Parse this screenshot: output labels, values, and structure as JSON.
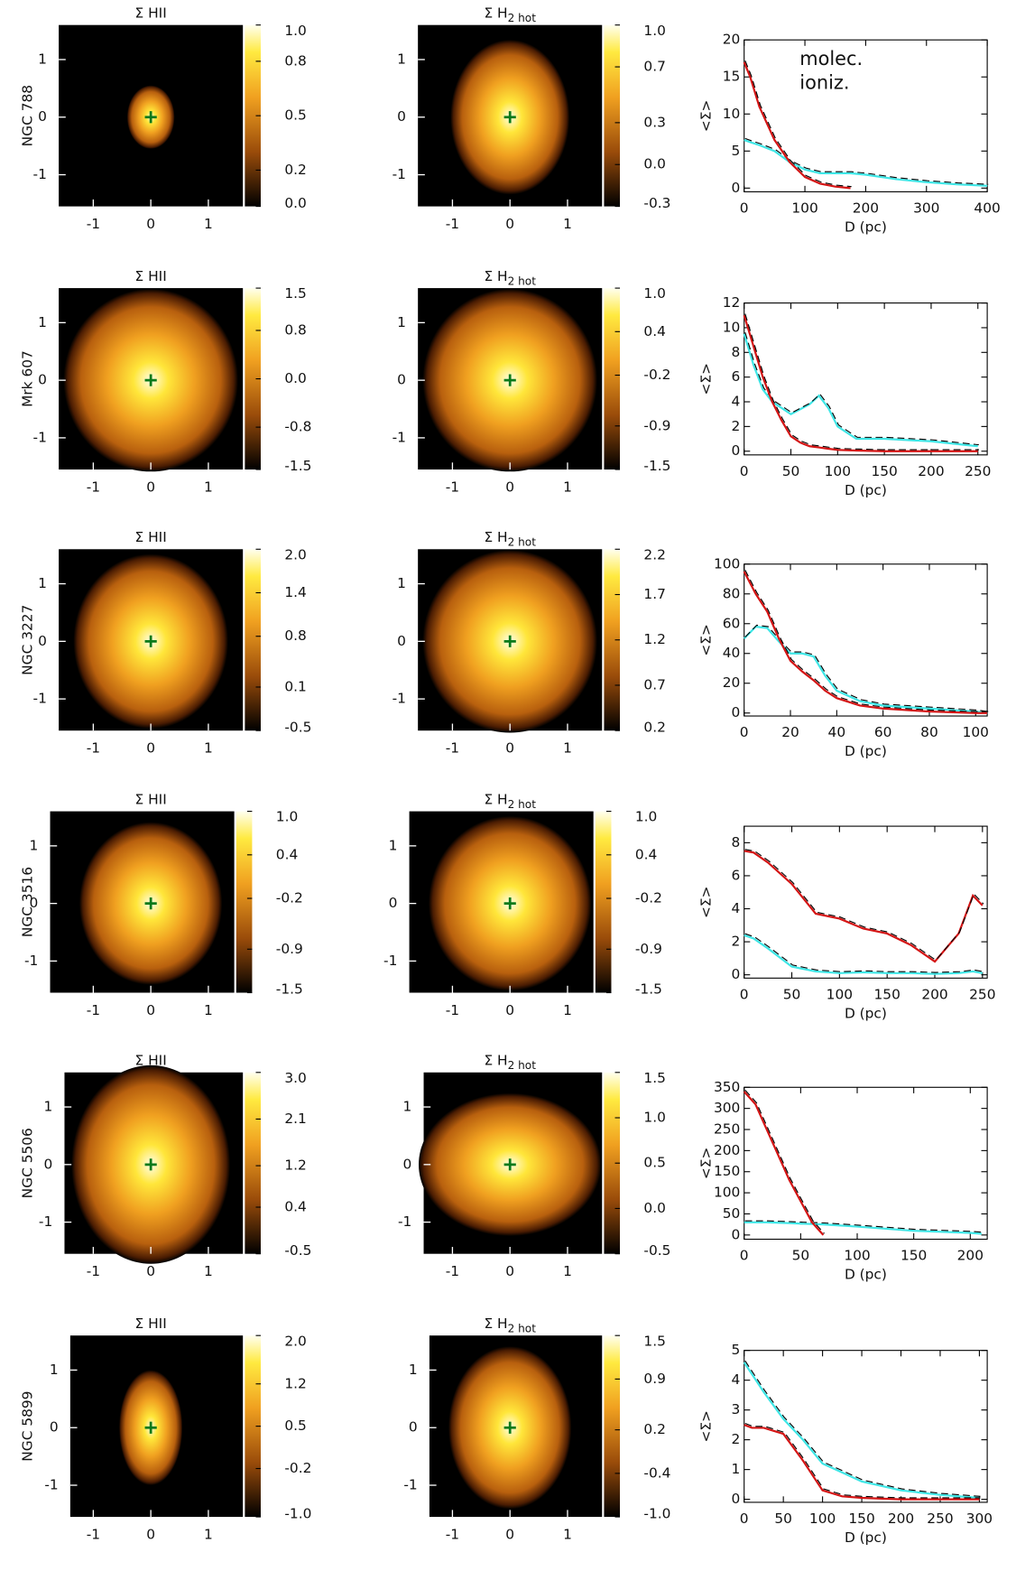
{
  "chart_data": [
    {
      "type": "heatmap",
      "title": "Σ HII",
      "ylabel": "NGC 788",
      "xlim": [
        -1.6,
        1.6
      ],
      "ylim": [
        -1.55,
        1.6
      ],
      "xticks": [
        -1,
        0,
        1
      ],
      "yticks": [
        -1,
        0,
        1
      ],
      "clim": [
        0,
        1
      ],
      "cticks": [
        {
          "value": 1,
          "label": "1.0"
        },
        0.8,
        0.5,
        0.2,
        {
          "value": 0,
          "label": "0.0"
        }
      ]
    },
    {
      "type": "heatmap",
      "title": "Σ H",
      "subscript": "2 hot",
      "xlim": [
        -1.6,
        1.6
      ],
      "ylim": [
        -1.55,
        1.6
      ],
      "xticks": [
        -1,
        0,
        1
      ],
      "yticks": [
        -1,
        0,
        1
      ],
      "clim": [
        -0.3,
        1
      ],
      "cticks": [
        {
          "value": 1,
          "label": "1.0"
        },
        0.7,
        0.3,
        {
          "value": 0,
          "label": "0.0"
        },
        -0.3
      ]
    },
    {
      "type": "line",
      "xlabel": "D (pc)",
      "ylabel": "<Σ>",
      "legend": true,
      "x": [
        0,
        10,
        25,
        50,
        75,
        100,
        125,
        150,
        175,
        200,
        250,
        300,
        350,
        400
      ],
      "xlim": [
        0,
        400
      ],
      "xticks": [
        0,
        100,
        200,
        300,
        400
      ],
      "ylim": [
        -0.5,
        20
      ],
      "yticks": [
        0,
        5,
        10,
        15,
        20
      ],
      "series": [
        {
          "name": "molec.",
          "color": "#3ee6e6",
          "values": [
            6.5,
            6.2,
            5.8,
            5,
            3.5,
            2.5,
            2,
            2,
            2,
            1.8,
            1.2,
            0.8,
            0.5,
            0.3
          ]
        },
        {
          "name": "ioniz.",
          "color": "#d41414",
          "values": [
            17,
            15,
            11,
            6.5,
            3.5,
            1.5,
            0.6,
            0.2,
            0,
            null,
            null,
            null,
            null,
            null
          ]
        }
      ]
    },
    {
      "type": "heatmap",
      "title": "Σ HII",
      "ylabel": "Mrk 607",
      "xlim": [
        -1.6,
        1.6
      ],
      "ylim": [
        -1.55,
        1.6
      ],
      "xticks": [
        -1,
        0,
        1
      ],
      "yticks": [
        -1,
        0,
        1
      ],
      "clim": [
        -1.5,
        1.5
      ],
      "cticks": [
        1.5,
        0.8,
        {
          "value": 0,
          "label": "0.0"
        },
        -0.8,
        -1.5
      ]
    },
    {
      "type": "heatmap",
      "title": "Σ H",
      "subscript": "2 hot",
      "xlim": [
        -1.6,
        1.6
      ],
      "ylim": [
        -1.55,
        1.6
      ],
      "xticks": [
        -1,
        0,
        1
      ],
      "yticks": [
        -1,
        0,
        1
      ],
      "clim": [
        -1.5,
        1
      ],
      "cticks": [
        {
          "value": 1,
          "label": "1.0"
        },
        0.4,
        -0.2,
        -0.9,
        -1.5
      ]
    },
    {
      "type": "line",
      "xlabel": "D (pc)",
      "ylabel": "<Σ>",
      "x": [
        0,
        10,
        20,
        30,
        40,
        50,
        60,
        70,
        80,
        90,
        100,
        120,
        150,
        200,
        250
      ],
      "xlim": [
        0,
        260
      ],
      "xticks": [
        0,
        50,
        100,
        150,
        200,
        250
      ],
      "ylim": [
        -0.3,
        12
      ],
      "yticks": [
        0,
        2,
        4,
        6,
        8,
        10,
        12
      ],
      "series": [
        {
          "color": "#3ee6e6",
          "values": [
            9.5,
            7,
            5,
            4,
            3.5,
            3,
            3.4,
            3.8,
            4.5,
            3.5,
            2,
            1,
            1,
            0.8,
            0.4
          ]
        },
        {
          "color": "#d41414",
          "values": [
            11,
            8.5,
            6,
            4,
            2.5,
            1.2,
            0.7,
            0.4,
            0.3,
            0.2,
            0.1,
            0.05,
            0,
            0,
            0
          ]
        }
      ]
    },
    {
      "type": "heatmap",
      "title": "Σ HII",
      "ylabel": "NGC 3227",
      "xlim": [
        -1.6,
        1.6
      ],
      "ylim": [
        -1.55,
        1.6
      ],
      "xticks": [
        -1,
        0,
        1
      ],
      "yticks": [
        -1,
        0,
        1
      ],
      "clim": [
        -0.5,
        2
      ],
      "cticks": [
        {
          "value": 2,
          "label": "2.0"
        },
        1.4,
        0.8,
        0.1,
        -0.5
      ]
    },
    {
      "type": "heatmap",
      "title": "Σ H",
      "subscript": "2 hot",
      "xlim": [
        -1.6,
        1.6
      ],
      "ylim": [
        -1.55,
        1.6
      ],
      "xticks": [
        -1,
        0,
        1
      ],
      "yticks": [
        -1,
        0,
        1
      ],
      "clim": [
        0.2,
        2.2
      ],
      "cticks": [
        2.2,
        1.7,
        1.2,
        0.7,
        0.2
      ]
    },
    {
      "type": "line",
      "xlabel": "D (pc)",
      "ylabel": "<Σ>",
      "x": [
        0,
        5,
        10,
        15,
        20,
        25,
        30,
        35,
        40,
        50,
        60,
        70,
        80,
        90,
        100,
        105
      ],
      "xlim": [
        0,
        105
      ],
      "xticks": [
        0,
        20,
        40,
        60,
        80,
        100
      ],
      "ylim": [
        -2,
        100
      ],
      "yticks": [
        0,
        20,
        40,
        60,
        80,
        100
      ],
      "series": [
        {
          "color": "#3ee6e6",
          "values": [
            50,
            58,
            57,
            48,
            40,
            40,
            38,
            25,
            15,
            8,
            5,
            4,
            3,
            2,
            1,
            0
          ]
        },
        {
          "color": "#d41414",
          "values": [
            95,
            80,
            68,
            50,
            35,
            28,
            22,
            15,
            10,
            5,
            3,
            2,
            1,
            0.5,
            0,
            0
          ]
        }
      ]
    },
    {
      "type": "heatmap",
      "title": "Σ HII",
      "ylabel": "NGC 3516",
      "xlim": [
        -1.75,
        1.45
      ],
      "ylim": [
        -1.55,
        1.6
      ],
      "xticks": [
        -1,
        0,
        1
      ],
      "yticks": [
        -1,
        0,
        1
      ],
      "clim": [
        -1.5,
        1
      ],
      "cticks": [
        {
          "value": 1,
          "label": "1.0"
        },
        0.4,
        -0.2,
        -0.9,
        -1.5
      ]
    },
    {
      "type": "heatmap",
      "title": "Σ H",
      "subscript": "2 hot",
      "xlim": [
        -1.75,
        1.45
      ],
      "ylim": [
        -1.55,
        1.6
      ],
      "xticks": [
        -1,
        0,
        1
      ],
      "yticks": [
        -1,
        0,
        1
      ],
      "clim": [
        -1.5,
        1
      ],
      "cticks": [
        {
          "value": 1,
          "label": "1.0"
        },
        0.4,
        -0.2,
        -0.9,
        -1.5
      ]
    },
    {
      "type": "line",
      "xlabel": "D (pc)",
      "ylabel": "<Σ>",
      "x": [
        0,
        10,
        25,
        50,
        75,
        100,
        125,
        150,
        175,
        200,
        225,
        240,
        250
      ],
      "xlim": [
        0,
        255
      ],
      "xticks": [
        0,
        50,
        100,
        150,
        200,
        250
      ],
      "ylim": [
        -0.2,
        9
      ],
      "yticks": [
        0,
        2,
        4,
        6,
        8
      ],
      "series": [
        {
          "color": "#3ee6e6",
          "values": [
            2.4,
            2.2,
            1.6,
            0.5,
            0.2,
            0.1,
            0.15,
            0.1,
            0.1,
            0.05,
            0.1,
            0.2,
            0.1
          ]
        },
        {
          "color": "#d41414",
          "values": [
            7.5,
            7.4,
            6.8,
            5.5,
            3.7,
            3.4,
            2.8,
            2.5,
            1.8,
            0.8,
            2.5,
            4.8,
            4.2
          ]
        }
      ]
    },
    {
      "type": "heatmap",
      "title": "Σ HII",
      "ylabel": "NGC 5506",
      "xlim": [
        -1.5,
        1.6
      ],
      "ylim": [
        -1.55,
        1.6
      ],
      "xticks": [
        -1,
        0,
        1
      ],
      "yticks": [
        -1,
        0,
        1
      ],
      "clim": [
        -0.5,
        3
      ],
      "cticks": [
        {
          "value": 3,
          "label": "3.0"
        },
        2.1,
        1.2,
        0.4,
        -0.5
      ]
    },
    {
      "type": "heatmap",
      "title": "Σ H",
      "subscript": "2 hot",
      "xlim": [
        -1.5,
        1.6
      ],
      "ylim": [
        -1.55,
        1.6
      ],
      "xticks": [
        -1,
        0,
        1
      ],
      "yticks": [
        -1,
        0,
        1
      ],
      "clim": [
        -0.5,
        1.5
      ],
      "cticks": [
        1.5,
        {
          "value": 1,
          "label": "1.0"
        },
        0.5,
        {
          "value": 0,
          "label": "0.0"
        },
        -0.5
      ]
    },
    {
      "type": "line",
      "xlabel": "D (pc)",
      "ylabel": "<Σ>",
      "x": [
        0,
        10,
        20,
        30,
        40,
        50,
        60,
        70,
        100,
        150,
        200,
        210
      ],
      "xlim": [
        0,
        215
      ],
      "xticks": [
        0,
        50,
        100,
        150,
        200
      ],
      "ylim": [
        -10,
        350
      ],
      "yticks": [
        0,
        50,
        100,
        150,
        200,
        250,
        300,
        350
      ],
      "series": [
        {
          "color": "#3ee6e6",
          "values": [
            30,
            30,
            30,
            29,
            28,
            27,
            26,
            25,
            20,
            10,
            5,
            3
          ]
        },
        {
          "color": "#d41414",
          "values": [
            340,
            310,
            250,
            190,
            130,
            80,
            30,
            0,
            null,
            null,
            null,
            null
          ]
        }
      ]
    },
    {
      "type": "heatmap",
      "title": "Σ HII",
      "ylabel": "NGC 5899",
      "xlim": [
        -1.4,
        1.6
      ],
      "ylim": [
        -1.55,
        1.6
      ],
      "xticks": [
        -1,
        0,
        1
      ],
      "yticks": [
        -1,
        0,
        1
      ],
      "clim": [
        -1,
        2
      ],
      "cticks": [
        {
          "value": 2,
          "label": "2.0"
        },
        1.2,
        0.5,
        -0.2,
        {
          "value": -1,
          "label": "-1.0"
        }
      ]
    },
    {
      "type": "heatmap",
      "title": "Σ H",
      "subscript": "2 hot",
      "xlim": [
        -1.4,
        1.6
      ],
      "ylim": [
        -1.55,
        1.6
      ],
      "xticks": [
        -1,
        0,
        1
      ],
      "yticks": [
        -1,
        0,
        1
      ],
      "clim": [
        -1,
        1.5
      ],
      "cticks": [
        1.5,
        0.9,
        0.2,
        -0.4,
        {
          "value": -1,
          "label": "-1.0"
        }
      ]
    },
    {
      "type": "line",
      "xlabel": "D (pc)",
      "ylabel": "<Σ>",
      "x": [
        0,
        10,
        25,
        50,
        75,
        100,
        125,
        150,
        200,
        250,
        300
      ],
      "xlim": [
        0,
        310
      ],
      "xticks": [
        0,
        50,
        100,
        150,
        200,
        250,
        300
      ],
      "ylim": [
        -0.1,
        5
      ],
      "yticks": [
        0,
        1,
        2,
        3,
        4,
        5
      ],
      "series": [
        {
          "color": "#3ee6e6",
          "values": [
            4.6,
            4.2,
            3.6,
            2.7,
            2,
            1.2,
            0.9,
            0.6,
            0.3,
            0.15,
            0.05
          ]
        },
        {
          "color": "#d41414",
          "values": [
            2.5,
            2.4,
            2.4,
            2.2,
            1.3,
            0.3,
            0.1,
            0.05,
            0,
            0,
            0
          ]
        }
      ]
    }
  ]
}
